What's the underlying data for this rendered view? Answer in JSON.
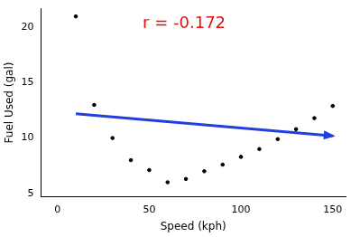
{
  "chart_data": {
    "type": "scatter",
    "x_label": "Speed (kph)",
    "y_label": "Fuel Used (gal)",
    "annotation": "r = -0.172",
    "annotation_color": "#e01010",
    "series": [
      {
        "type": "scatter",
        "color": "#000000",
        "marker": "circle",
        "x": [
          10,
          20,
          30,
          40,
          50,
          60,
          70,
          80,
          90,
          100,
          110,
          120,
          130,
          140,
          150
        ],
        "values": [
          21,
          13,
          10,
          8,
          7.1,
          6,
          6.3,
          7,
          7.6,
          8.3,
          9,
          9.9,
          10.8,
          11.8,
          12.9
        ]
      },
      {
        "type": "line",
        "color": "#1f3fe0",
        "line_style": "solid",
        "marker": "arrow",
        "x": [
          10,
          150
        ],
        "values": [
          12.2,
          10.2
        ]
      }
    ],
    "xlim": [
      -9,
      157
    ],
    "xticks": [
      0,
      50,
      100,
      150
    ],
    "ylim": [
      4.7,
      21.7
    ],
    "yticks": [
      5,
      10,
      15,
      20
    ],
    "grid": false
  }
}
